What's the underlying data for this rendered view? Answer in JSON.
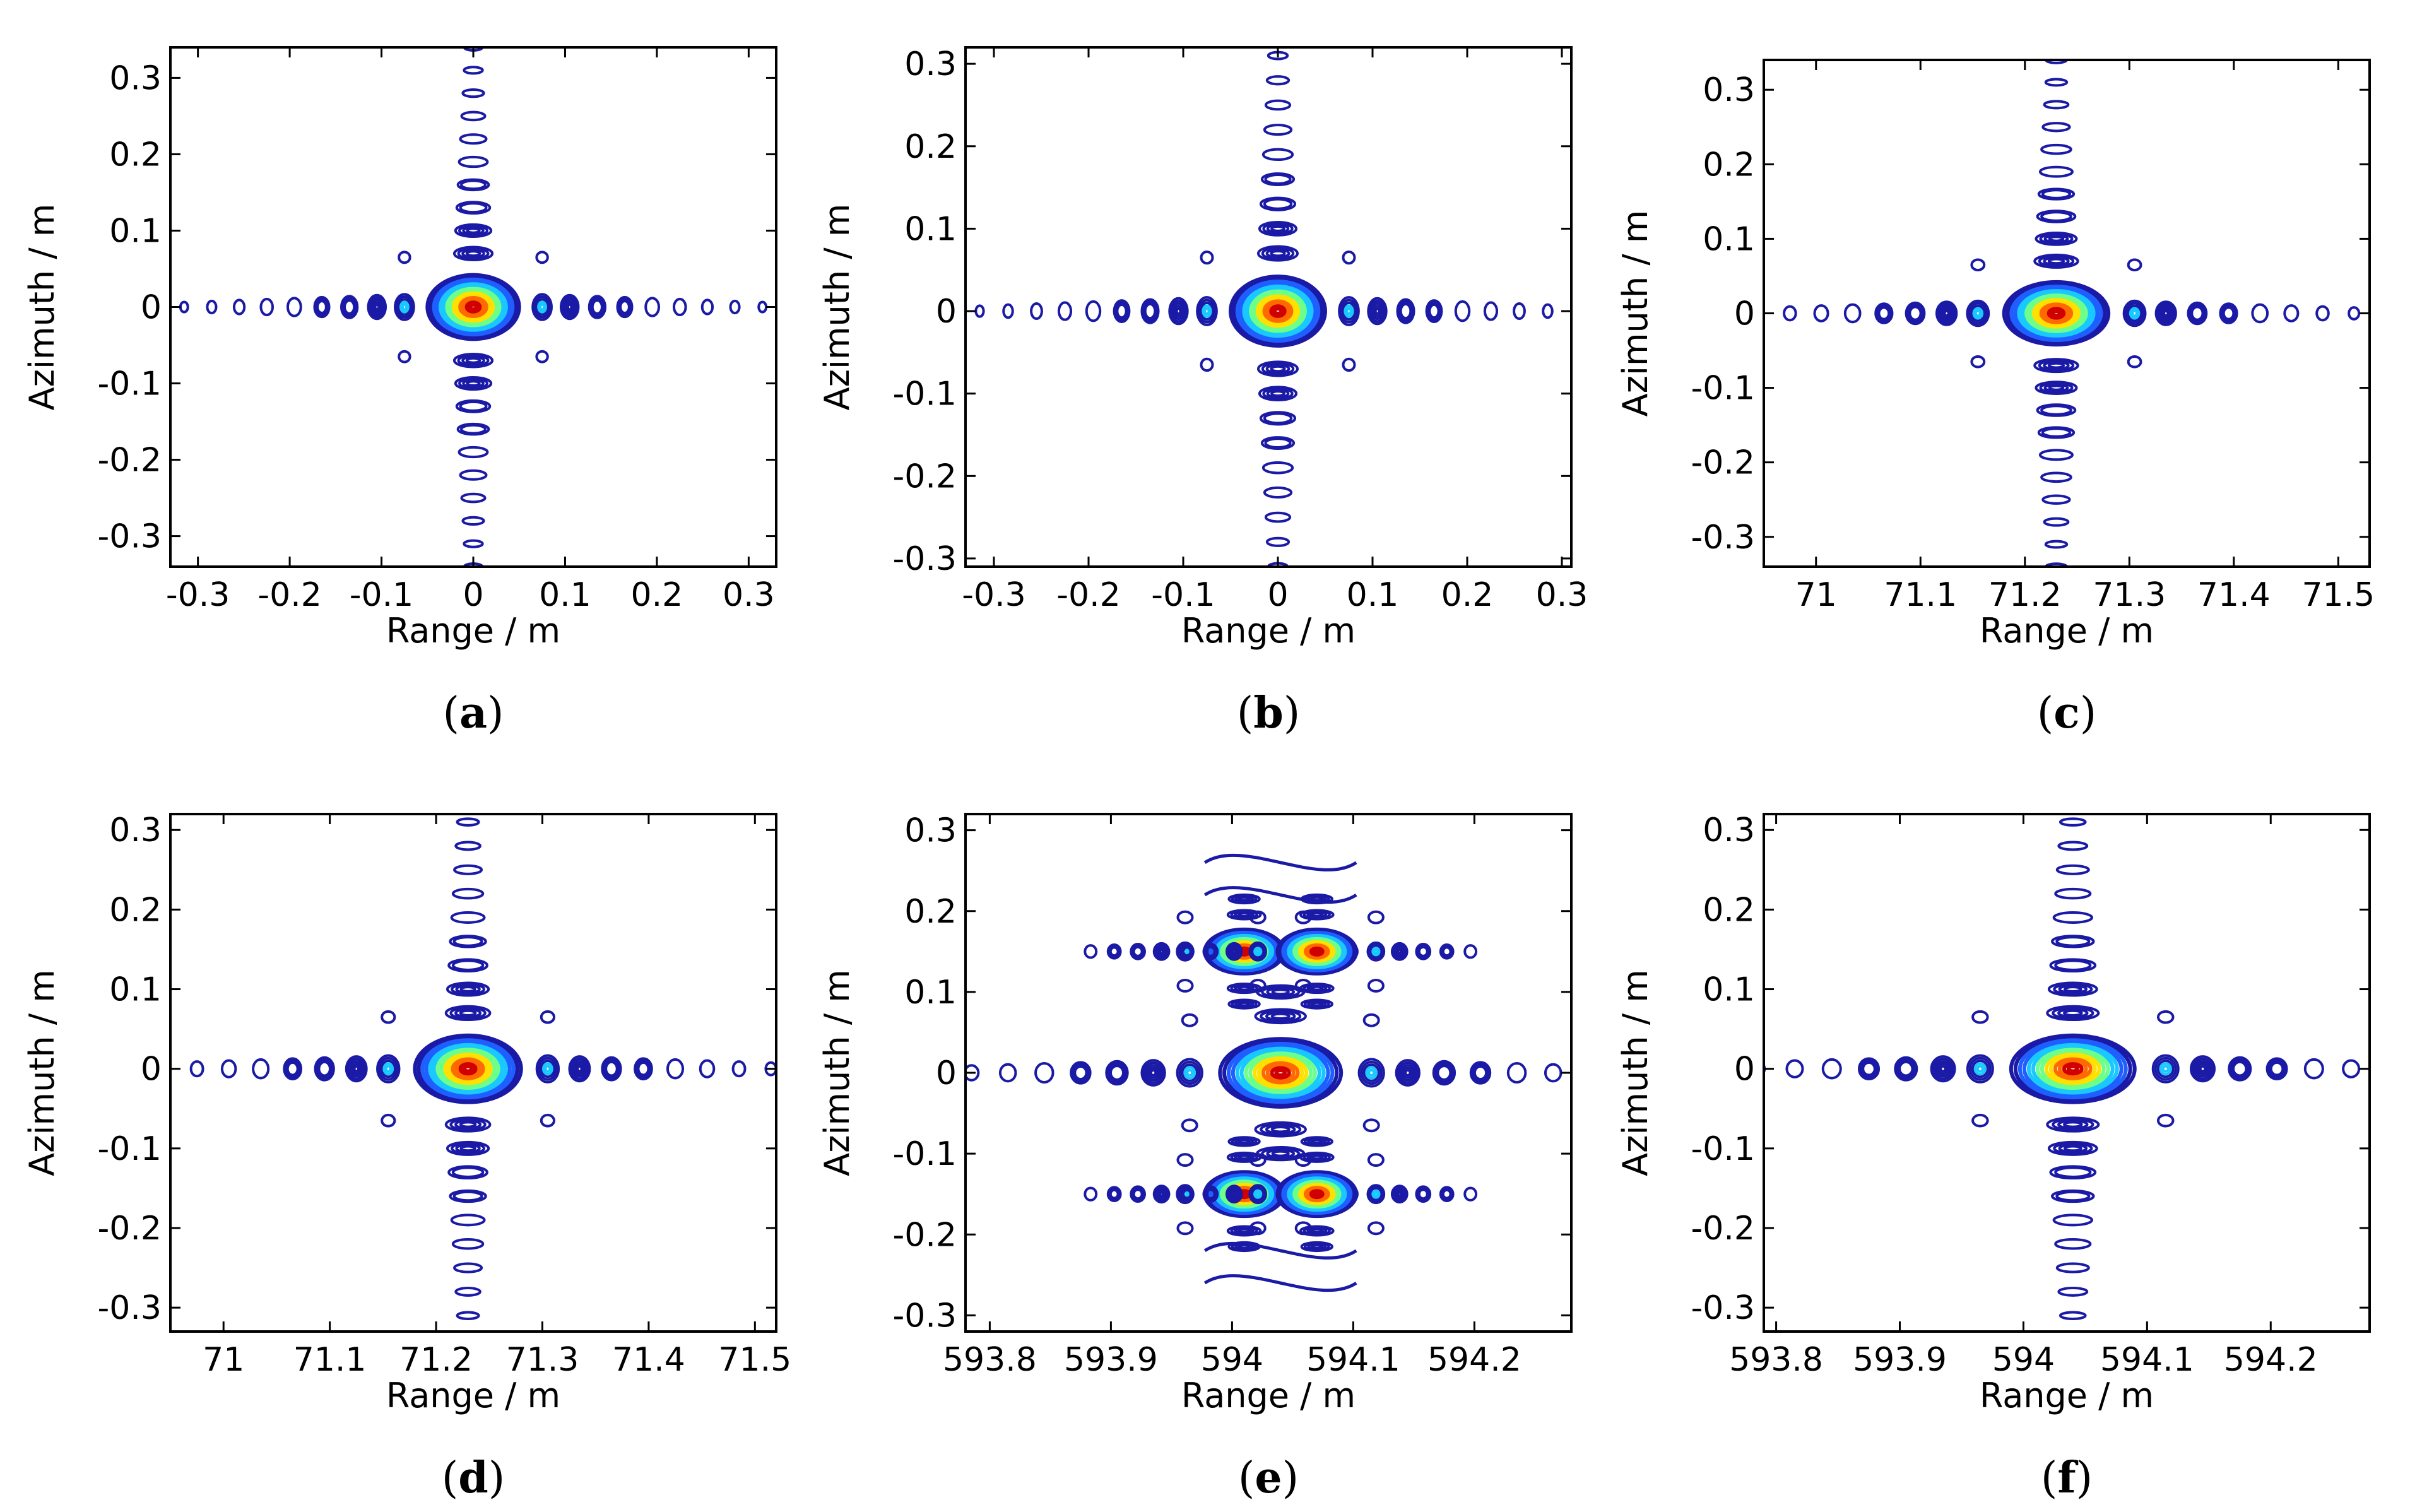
{
  "chart_data": [
    {
      "type": "contour",
      "caption": "a",
      "xlabel": "Range / m",
      "ylabel": "Azimuth / m",
      "xlim": [
        -0.33,
        0.33
      ],
      "ylim": [
        -0.34,
        0.34
      ],
      "xticks": [
        -0.3,
        -0.2,
        -0.1,
        0,
        0.1,
        0.2,
        0.3
      ],
      "xtick_labels": [
        "-0.3",
        "-0.2",
        "-0.1",
        "0",
        "0.1",
        "0.2",
        "0.3"
      ],
      "yticks": [
        0.3,
        0.2,
        0.1,
        0,
        -0.1,
        -0.2,
        -0.3
      ],
      "ytick_labels": [
        "0.3",
        "0.2",
        "0.1",
        "0",
        "-0.1",
        "-0.2",
        "-0.3"
      ],
      "peaks": [
        {
          "range": 0.0,
          "azimuth": 0.0
        }
      ],
      "pattern": "focused"
    },
    {
      "type": "contour",
      "caption": "b",
      "xlabel": "Range / m",
      "ylabel": "Azimuth / m",
      "xlim": [
        -0.33,
        0.31
      ],
      "ylim": [
        -0.31,
        0.32
      ],
      "xticks": [
        -0.3,
        -0.2,
        -0.1,
        0,
        0.1,
        0.2,
        0.3
      ],
      "xtick_labels": [
        "-0.3",
        "-0.2",
        "-0.1",
        "0",
        "0.1",
        "0.2",
        "0.3"
      ],
      "yticks": [
        0.3,
        0.2,
        0.1,
        0,
        -0.1,
        -0.2,
        -0.3
      ],
      "ytick_labels": [
        "0.3",
        "0.2",
        "0.1",
        "0",
        "-0.1",
        "-0.2",
        "-0.3"
      ],
      "peaks": [
        {
          "range": 0.0,
          "azimuth": 0.0
        }
      ],
      "pattern": "focused"
    },
    {
      "type": "contour",
      "caption": "c",
      "xlabel": "Range / m",
      "ylabel": "Azimuth / m",
      "xlim": [
        70.95,
        71.53
      ],
      "ylim": [
        -0.34,
        0.34
      ],
      "xticks": [
        71,
        71.1,
        71.2,
        71.3,
        71.4,
        71.5
      ],
      "xtick_labels": [
        "71",
        "71.1",
        "71.2",
        "71.3",
        "71.4",
        "71.5"
      ],
      "yticks": [
        0.3,
        0.2,
        0.1,
        0,
        -0.1,
        -0.2,
        -0.3
      ],
      "ytick_labels": [
        "0.3",
        "0.2",
        "0.1",
        "0",
        "-0.1",
        "-0.2",
        "-0.3"
      ],
      "peaks": [
        {
          "range": 71.23,
          "azimuth": 0.0
        }
      ],
      "pattern": "slightly-distorted"
    },
    {
      "type": "contour",
      "caption": "d",
      "xlabel": "Range / m",
      "ylabel": "Azimuth / m",
      "xlim": [
        70.95,
        71.52
      ],
      "ylim": [
        -0.33,
        0.32
      ],
      "xticks": [
        71,
        71.1,
        71.2,
        71.3,
        71.4,
        71.5
      ],
      "xtick_labels": [
        "71",
        "71.1",
        "71.2",
        "71.3",
        "71.4",
        "71.5"
      ],
      "yticks": [
        0.3,
        0.2,
        0.1,
        0,
        -0.1,
        -0.2,
        -0.3
      ],
      "ytick_labels": [
        "0.3",
        "0.2",
        "0.1",
        "0",
        "-0.1",
        "-0.2",
        "-0.3"
      ],
      "peaks": [
        {
          "range": 71.23,
          "azimuth": 0.0
        }
      ],
      "pattern": "focused"
    },
    {
      "type": "contour",
      "caption": "e",
      "xlabel": "Range / m",
      "ylabel": "Azimuth / m",
      "xlim": [
        593.78,
        594.28
      ],
      "ylim": [
        -0.32,
        0.32
      ],
      "xticks": [
        593.8,
        593.9,
        594,
        594.1,
        594.2
      ],
      "xtick_labels": [
        "593.8",
        "593.9",
        "594",
        "594.1",
        "594.2"
      ],
      "yticks": [
        0.3,
        0.2,
        0.1,
        0,
        -0.1,
        -0.2,
        -0.3
      ],
      "ytick_labels": [
        "0.3",
        "0.2",
        "0.1",
        "0",
        "-0.1",
        "-0.2",
        "-0.3"
      ],
      "peaks": [
        {
          "range": 594.04,
          "azimuth": 0.0
        },
        {
          "range": 594.01,
          "azimuth": 0.15
        },
        {
          "range": 594.07,
          "azimuth": 0.15
        },
        {
          "range": 594.01,
          "azimuth": -0.15
        },
        {
          "range": 594.07,
          "azimuth": -0.15
        }
      ],
      "pattern": "paired-echoes"
    },
    {
      "type": "contour",
      "caption": "f",
      "xlabel": "Range / m",
      "ylabel": "Azimuth / m",
      "xlim": [
        593.79,
        594.28
      ],
      "ylim": [
        -0.33,
        0.32
      ],
      "xticks": [
        593.8,
        593.9,
        594,
        594.1,
        594.2
      ],
      "xtick_labels": [
        "593.8",
        "593.9",
        "594",
        "594.1",
        "594.2"
      ],
      "yticks": [
        0.3,
        0.2,
        0.1,
        0,
        -0.1,
        -0.2,
        -0.3
      ],
      "ytick_labels": [
        "0.3",
        "0.2",
        "0.1",
        "0",
        "-0.1",
        "-0.2",
        "-0.3"
      ],
      "peaks": [
        {
          "range": 594.04,
          "azimuth": 0.0
        }
      ],
      "pattern": "focused"
    }
  ],
  "colors": {
    "contour": "#1a1aa6",
    "colormap": [
      "#1a1aa6",
      "#1f5fff",
      "#19c8ff",
      "#6cff8a",
      "#ffe000",
      "#ff6a00",
      "#d00000"
    ]
  }
}
